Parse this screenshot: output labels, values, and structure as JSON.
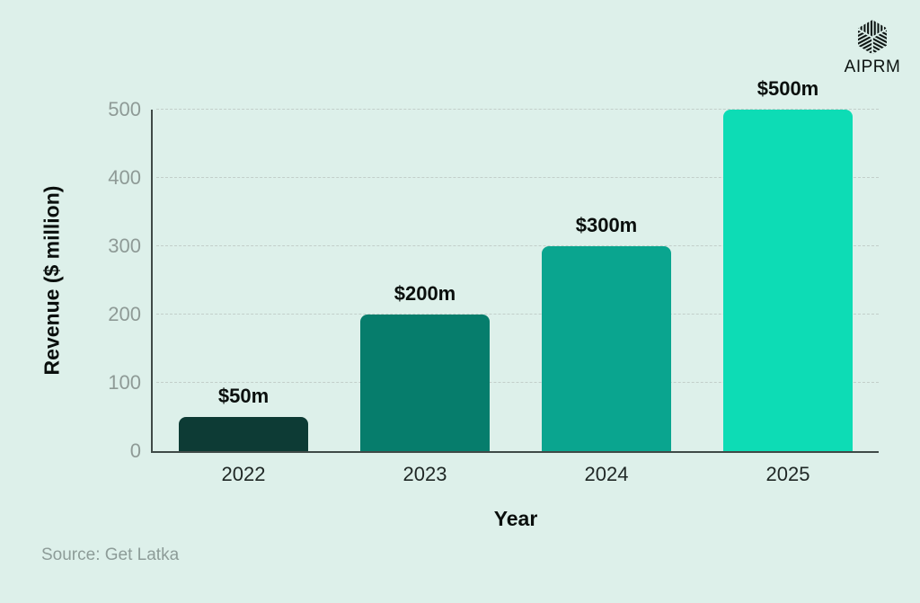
{
  "logo": {
    "label": "AIPRM",
    "icon": "aiprm-cube-icon"
  },
  "chart_data": {
    "type": "bar",
    "title": "",
    "categories": [
      "2022",
      "2023",
      "2024",
      "2025"
    ],
    "values": [
      50,
      200,
      300,
      500
    ],
    "bar_labels": [
      "$50m",
      "$200m",
      "$300m",
      "$500m"
    ],
    "bar_colors": [
      "#0d3b35",
      "#067d6c",
      "#0aa58f",
      "#0ddcb5"
    ],
    "xlabel": "Year",
    "ylabel": "Revenue ($ million)",
    "ylim": [
      0,
      500
    ],
    "yticks": [
      0,
      100,
      200,
      300,
      400,
      500
    ],
    "grid": "horizontal-dashed",
    "legend_position": "none"
  },
  "footer": {
    "source": "Source: Get Latka"
  },
  "colors": {
    "background": "#ddf0ea",
    "axis": "#3f4a47",
    "gridline": "#c2cfca",
    "ytick_label": "#8e9a96",
    "xtick_label": "#1f2725",
    "text": "#0a0f0d",
    "source_text": "#8d9c98"
  }
}
